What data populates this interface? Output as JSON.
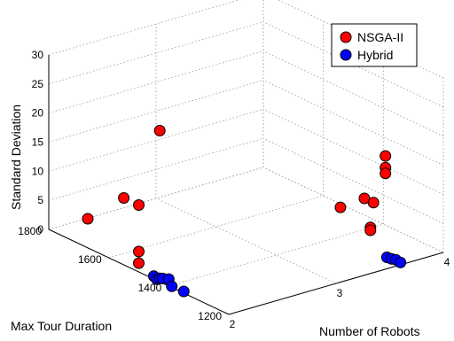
{
  "chart_data": {
    "type": "scatter",
    "projection": "3d",
    "xlabel": "Number of Robots",
    "ylabel": "Max Tour Duration",
    "zlabel": "Standard Deviation",
    "xlim": [
      2,
      4
    ],
    "ylim": [
      1200,
      1800
    ],
    "zlim": [
      0,
      30
    ],
    "x_ticks": [
      "2",
      "3",
      "4"
    ],
    "y_ticks": [
      "1200",
      "1400",
      "1600",
      "1800"
    ],
    "z_ticks": [
      "0",
      "5",
      "10",
      "15",
      "20",
      "25",
      "30"
    ],
    "grid": true,
    "legend_position": "top-right",
    "series": [
      {
        "name": "NSGA-II",
        "color": "#ff0000",
        "points": [
          {
            "x": 2.0,
            "y": 1430,
            "z": 26
          },
          {
            "x": 2.0,
            "y": 1550,
            "z": 11.5
          },
          {
            "x": 2.0,
            "y": 1500,
            "z": 11.5
          },
          {
            "x": 2.0,
            "y": 1670,
            "z": 5
          },
          {
            "x": 2.0,
            "y": 1500,
            "z": 3.5
          },
          {
            "x": 2.0,
            "y": 1500,
            "z": 1.5
          },
          {
            "x": 3.6,
            "y": 1250,
            "z": 17.5
          },
          {
            "x": 3.6,
            "y": 1250,
            "z": 15.5
          },
          {
            "x": 3.6,
            "y": 1250,
            "z": 14.5
          },
          {
            "x": 3.6,
            "y": 1320,
            "z": 8.5
          },
          {
            "x": 3.6,
            "y": 1290,
            "z": 8.5
          },
          {
            "x": 3.6,
            "y": 1400,
            "z": 5
          },
          {
            "x": 3.6,
            "y": 1300,
            "z": 4
          },
          {
            "x": 3.6,
            "y": 1300,
            "z": 3.5
          }
        ]
      },
      {
        "name": "Hybrid",
        "color": "#0000ff",
        "points": [
          {
            "x": 2.0,
            "y": 1400,
            "z": 1.2
          },
          {
            "x": 2.0,
            "y": 1420,
            "z": 0.8
          },
          {
            "x": 2.0,
            "y": 1430,
            "z": 0.6
          },
          {
            "x": 2.0,
            "y": 1450,
            "z": 0.5
          },
          {
            "x": 2.0,
            "y": 1440,
            "z": 0.2
          },
          {
            "x": 2.0,
            "y": 1350,
            "z": 0.3
          },
          {
            "x": 2.0,
            "y": 1390,
            "z": 0.2
          },
          {
            "x": 3.6,
            "y": 1200,
            "z": 0.4
          },
          {
            "x": 3.6,
            "y": 1215,
            "z": 0.5
          },
          {
            "x": 3.6,
            "y": 1230,
            "z": 0.3
          },
          {
            "x": 3.6,
            "y": 1245,
            "z": 0.2
          }
        ]
      }
    ]
  }
}
